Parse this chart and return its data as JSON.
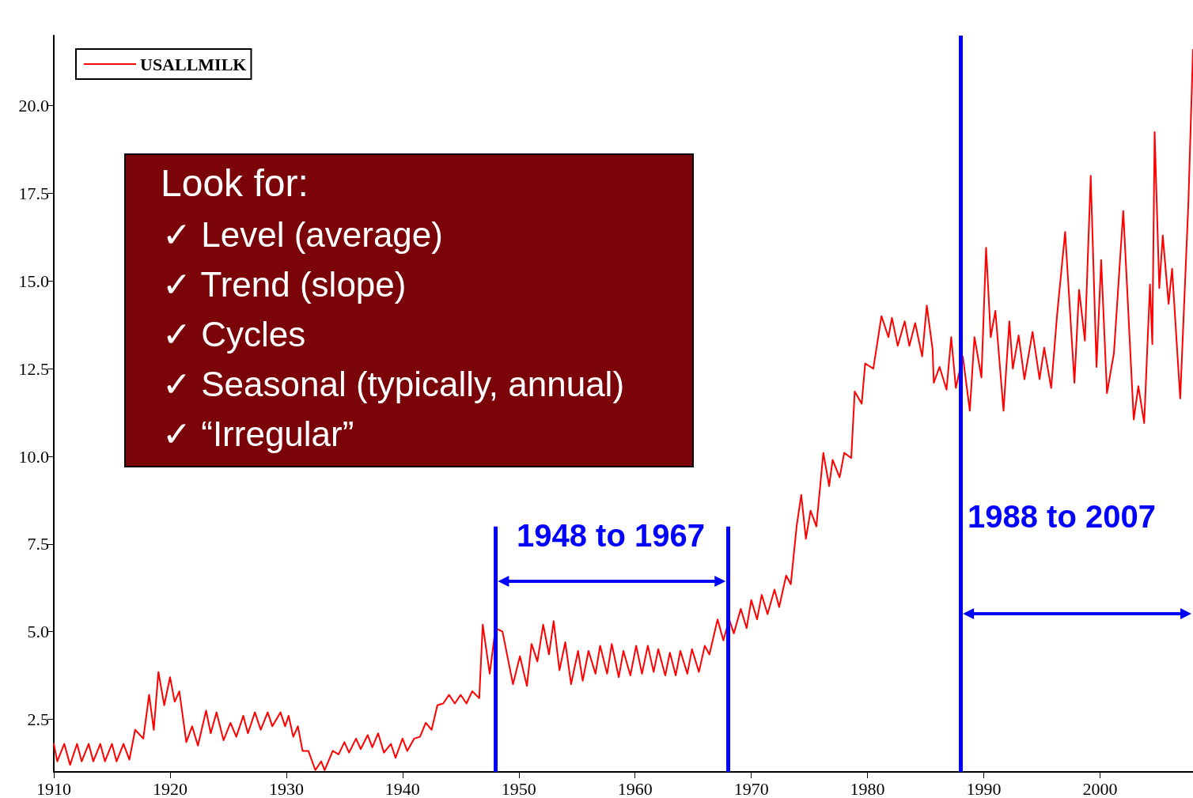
{
  "chart_data": {
    "type": "line",
    "legend": "top left",
    "marker": "none",
    "line_style": "solid",
    "grid": false,
    "xlim": [
      1910,
      2008
    ],
    "xticks": [
      1910,
      1920,
      1930,
      1940,
      1950,
      1960,
      1970,
      1980,
      1990,
      2000
    ],
    "ylim": [
      1,
      22
    ],
    "yticks": [
      {
        "value": 2.5,
        "label": "2.5"
      },
      {
        "value": 5,
        "label": "5.0"
      },
      {
        "value": 7.5,
        "label": "7.5"
      },
      {
        "value": 10,
        "label": "10.0"
      },
      {
        "value": 12.5,
        "label": "12.5"
      },
      {
        "value": 15,
        "label": "15.0"
      },
      {
        "value": 17.5,
        "label": "17.5"
      },
      {
        "value": 20,
        "label": "20.0"
      }
    ],
    "ref_lines": [
      {
        "axis": "x",
        "value": 1948,
        "color": "#0000ff"
      },
      {
        "axis": "x",
        "value": 1968,
        "color": "#0000ff"
      },
      {
        "axis": "x",
        "value": 1988,
        "color": "#0000ff"
      }
    ],
    "annotations": [
      "Look for:",
      "✓ Level (average)",
      "✓ Trend (slope)",
      "✓ Cycles",
      "✓ Seasonal (typically, annual)",
      "✓ “Irregular”",
      "1948 to 1967",
      "1988 to 2007"
    ],
    "series": [
      {
        "name": "USALLMILK",
        "color": "#ff0000",
        "x": [
          1910,
          1910.3,
          1910.9,
          1911.4,
          1912,
          1912.4,
          1913,
          1913.4,
          1914,
          1914.4,
          1915,
          1915.4,
          1916,
          1916.5,
          1917,
          1917.7,
          1918.2,
          1918.6,
          1919,
          1919.5,
          1920,
          1920.4,
          1920.8,
          1921.4,
          1921.9,
          1922.4,
          1923.1,
          1923.5,
          1924,
          1924.6,
          1925.2,
          1925.7,
          1926.3,
          1926.7,
          1927.3,
          1927.8,
          1928.4,
          1928.8,
          1929.5,
          1929.9,
          1930.2,
          1930.6,
          1931,
          1931.4,
          1931.9,
          1932.5,
          1933,
          1933.3,
          1934,
          1934.5,
          1935,
          1935.4,
          1936,
          1936.4,
          1937,
          1937.4,
          1937.9,
          1938.4,
          1939,
          1939.4,
          1940,
          1940.4,
          1941,
          1941.5,
          1942,
          1942.5,
          1943,
          1943.5,
          1944,
          1944.5,
          1945,
          1945.5,
          1946,
          1946.6,
          1946.9,
          1947.5,
          1948,
          1948.6,
          1949.5,
          1950.1,
          1950.7,
          1951.1,
          1951.6,
          1952.1,
          1952.6,
          1953,
          1953.5,
          1954,
          1954.5,
          1955.1,
          1955.5,
          1956,
          1956.6,
          1957,
          1957.6,
          1958,
          1958.6,
          1959,
          1959.6,
          1960.1,
          1960.6,
          1961.1,
          1961.6,
          1962,
          1962.6,
          1963,
          1963.5,
          1963.9,
          1964.5,
          1964.9,
          1965.5,
          1966,
          1966.4,
          1967.1,
          1967.6,
          1968.1,
          1968.5,
          1969.1,
          1969.6,
          1970,
          1970.5,
          1970.9,
          1971.4,
          1972,
          1972.4,
          1973,
          1973.4,
          1973.9,
          1974.3,
          1974.7,
          1975.1,
          1975.6,
          1976.2,
          1976.7,
          1977,
          1977.6,
          1978,
          1978.6,
          1978.9,
          1979.5,
          1979.8,
          1980.5,
          1981.2,
          1981.8,
          1982.1,
          1982.6,
          1983.2,
          1983.6,
          1984.1,
          1984.7,
          1985.1,
          1985.6,
          1985.7,
          1986.2,
          1986.8,
          1987.2,
          1987.6,
          1988.2,
          1988.8,
          1989.2,
          1989.8,
          1990.2,
          1990.6,
          1991,
          1991.7,
          1992.2,
          1992.5,
          1993,
          1993.5,
          1994.2,
          1994.8,
          1995.2,
          1995.8,
          1996.3,
          1997,
          1997.8,
          1998.2,
          1998.7,
          1999.2,
          1999.7,
          2000.1,
          2000.6,
          2001.2,
          2002,
          2002.9,
          2003.3,
          2003.8,
          2004.3,
          2004.5,
          2004.7,
          2005.1,
          2005.4,
          2005.9,
          2006.2,
          2006.9,
          2007.6,
          2008
        ],
        "values": [
          1.8,
          1.3,
          1.8,
          1.2,
          1.8,
          1.3,
          1.8,
          1.3,
          1.8,
          1.3,
          1.8,
          1.3,
          1.8,
          1.35,
          2.2,
          1.95,
          3.2,
          2.2,
          3.85,
          2.9,
          3.7,
          3.0,
          3.3,
          1.85,
          2.3,
          1.75,
          2.75,
          2.1,
          2.7,
          1.9,
          2.4,
          2.0,
          2.6,
          2.1,
          2.7,
          2.2,
          2.7,
          2.3,
          2.7,
          2.3,
          2.6,
          2.0,
          2.3,
          1.6,
          1.6,
          1.05,
          1.3,
          1.05,
          1.6,
          1.5,
          1.85,
          1.55,
          1.95,
          1.65,
          2.05,
          1.7,
          2.1,
          1.55,
          1.8,
          1.4,
          1.95,
          1.6,
          1.95,
          2.0,
          2.4,
          2.2,
          2.9,
          2.95,
          3.2,
          2.95,
          3.2,
          2.95,
          3.3,
          3.1,
          5.2,
          3.8,
          5.1,
          5.0,
          3.5,
          4.3,
          3.45,
          4.65,
          4.15,
          5.2,
          4.35,
          5.3,
          3.9,
          4.7,
          3.5,
          4.45,
          3.6,
          4.45,
          3.8,
          4.6,
          3.8,
          4.65,
          3.7,
          4.45,
          3.75,
          4.6,
          3.8,
          4.6,
          3.85,
          4.5,
          3.75,
          4.4,
          3.75,
          4.45,
          3.8,
          4.5,
          3.85,
          4.6,
          4.35,
          5.35,
          4.75,
          5.35,
          4.95,
          5.65,
          5.1,
          5.9,
          5.35,
          6.05,
          5.5,
          6.2,
          5.7,
          6.6,
          6.35,
          8.0,
          8.9,
          7.65,
          8.45,
          8.0,
          10.1,
          9.15,
          9.9,
          9.4,
          10.1,
          9.95,
          11.85,
          11.5,
          12.65,
          12.5,
          14.0,
          13.4,
          13.95,
          13.15,
          13.85,
          13.15,
          13.8,
          12.85,
          14.3,
          13.05,
          12.1,
          12.55,
          11.9,
          13.4,
          11.95,
          12.85,
          11.3,
          13.4,
          12.25,
          15.95,
          13.4,
          14.15,
          11.3,
          13.85,
          12.5,
          13.45,
          12.2,
          13.55,
          12.2,
          13.1,
          11.95,
          14.0,
          16.4,
          12.1,
          14.75,
          13.3,
          18.0,
          12.55,
          15.6,
          11.8,
          12.95,
          17.0,
          11.05,
          12.0,
          10.95,
          14.9,
          13.2,
          19.25,
          14.8,
          16.3,
          14.35,
          15.35,
          11.65,
          17.2,
          21.6
        ]
      }
    ]
  }
}
